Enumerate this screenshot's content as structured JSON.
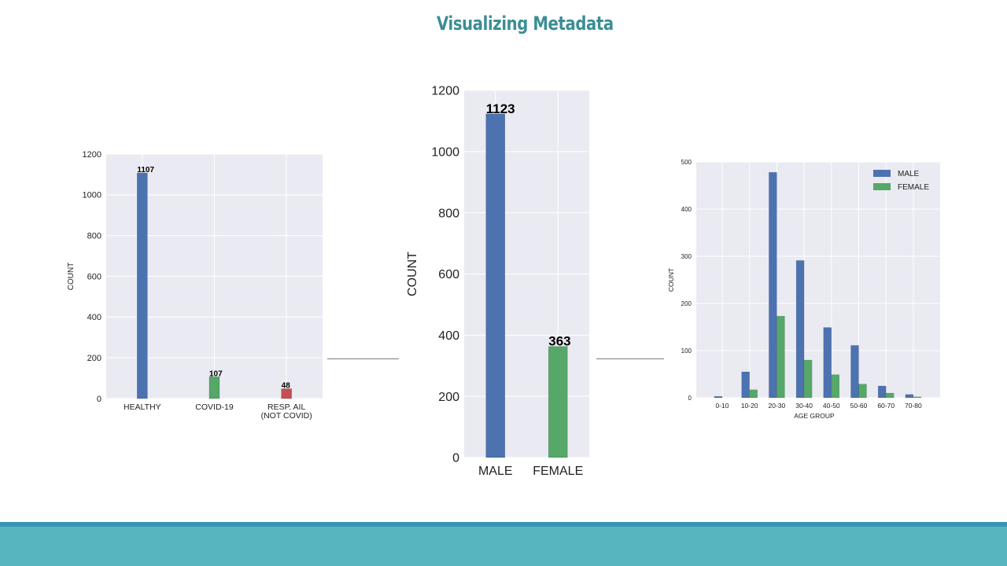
{
  "slide": {
    "title": "Visualizing Metadata",
    "title_color": "#3b8e95",
    "footer_line_color": "#3a93b3",
    "footer_band_color": "#57b5c0",
    "connector_color": "#7a7a7a"
  },
  "chart_data": [
    {
      "type": "bar",
      "categories": [
        "HEALTHY",
        "COVID-19",
        "RESP. AIL\n(NOT COVID)"
      ],
      "values": [
        1107,
        107,
        48
      ],
      "data_labels": [
        "1107",
        "107",
        "48"
      ],
      "colors": [
        "#4c72b0",
        "#55a868",
        "#c44e52"
      ],
      "title": "",
      "xlabel": "",
      "ylabel": "COUNT",
      "ylim": [
        0,
        1200
      ],
      "yticks": [
        0,
        200,
        400,
        600,
        800,
        1000,
        1200
      ],
      "ytick_labels": [
        "0",
        "200",
        "400",
        "600",
        "800",
        "1000",
        "1200"
      ],
      "grid": true,
      "background": "#eaeaf2"
    },
    {
      "type": "bar",
      "categories": [
        "MALE",
        "FEMALE"
      ],
      "values": [
        1123,
        363
      ],
      "data_labels": [
        "1123",
        "363"
      ],
      "colors": [
        "#4c72b0",
        "#55a868"
      ],
      "title": "",
      "xlabel": "",
      "ylabel": "COUNT",
      "ylim": [
        0,
        1200
      ],
      "yticks": [
        0,
        200,
        400,
        600,
        800,
        1000,
        1200
      ],
      "ytick_labels": [
        "0",
        "200",
        "400",
        "600",
        "800",
        "1000",
        "1200"
      ],
      "grid": true,
      "background": "#eaeaf2"
    },
    {
      "type": "bar",
      "categories": [
        "0-10",
        "10-20",
        "20-30",
        "30-40",
        "40-50",
        "50-60",
        "60-70",
        "70-80"
      ],
      "series": [
        {
          "name": "MALE",
          "color": "#4c72b0",
          "values": [
            3,
            55,
            478,
            291,
            149,
            111,
            25,
            7
          ]
        },
        {
          "name": "FEMALE",
          "color": "#55a868",
          "values": [
            0,
            17,
            173,
            80,
            49,
            29,
            10,
            2
          ]
        }
      ],
      "title": "",
      "xlabel": "AGE GROUP",
      "ylabel": "COUNT",
      "ylim": [
        0,
        500
      ],
      "yticks": [
        0,
        100,
        200,
        300,
        400,
        500
      ],
      "ytick_labels": [
        "0",
        "100",
        "200",
        "300",
        "400",
        "500"
      ],
      "grid": true,
      "legend_placement": "top-right",
      "background": "#eaeaf2"
    }
  ]
}
